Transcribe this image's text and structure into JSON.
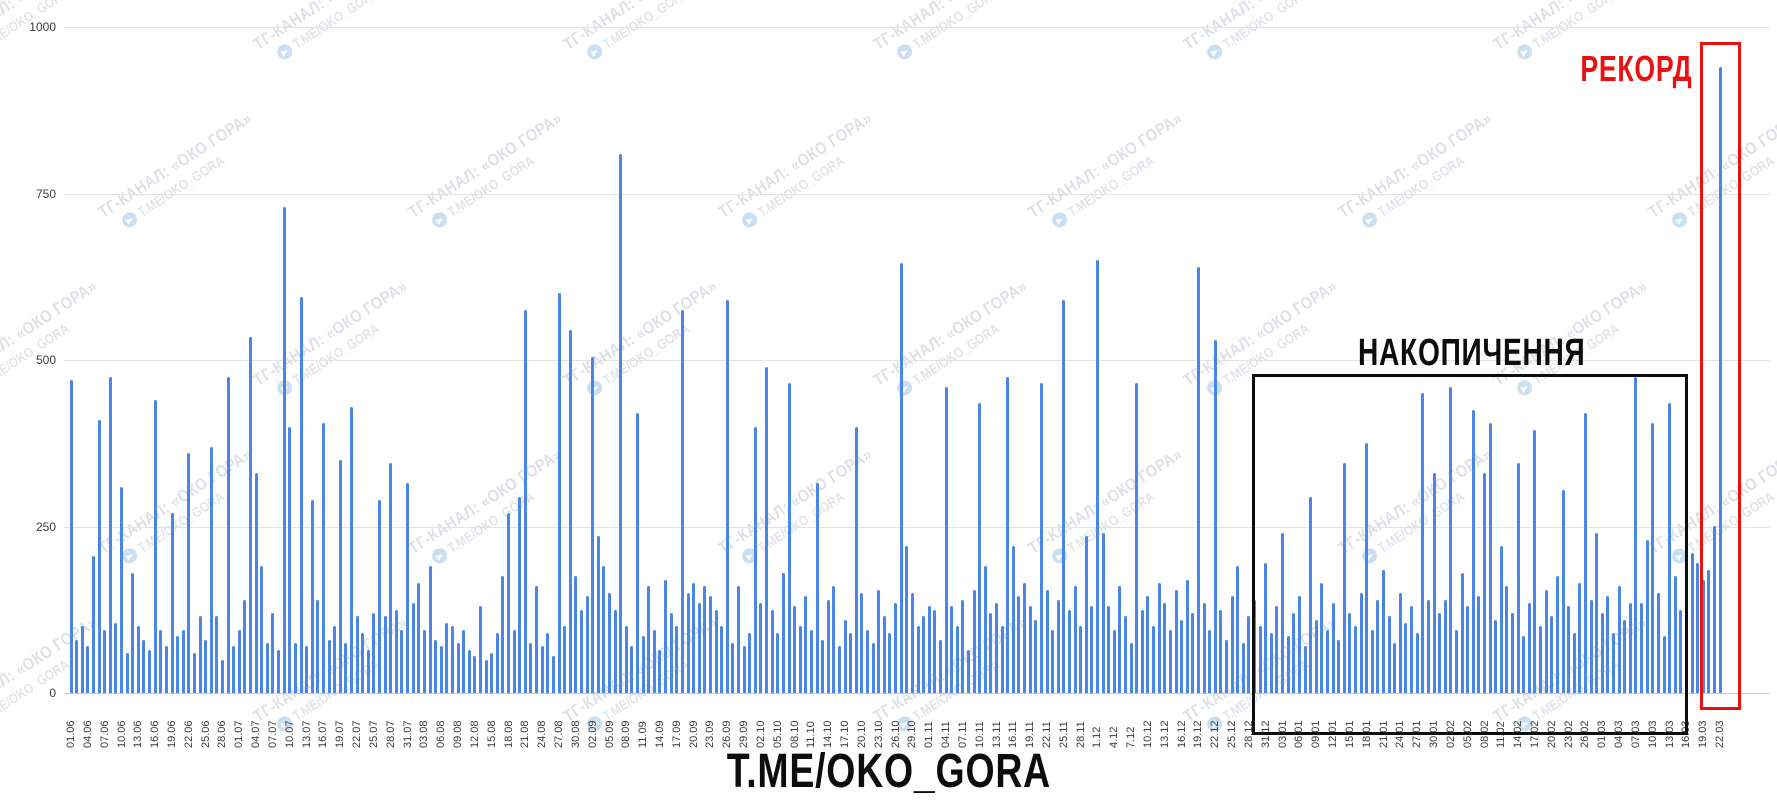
{
  "colors": {
    "bar_blue": "#4a86e8",
    "record_red": "#ea1111",
    "accum_black": "#0d0d0d",
    "gridline": "#e3e3e3",
    "axis_line": "#c9c9c9",
    "tick_text": "#3a3a3a"
  },
  "annotations": {
    "record_label": "РЕКОРД",
    "accumulation_label": "НАКОПИЧЕННЯ"
  },
  "footer": {
    "channel_url": "T.ME/OKO_GORA"
  },
  "watermark": {
    "line1": "ТГ-КАНАЛ: «ОКО ГОРА»",
    "line2": "T.ME/OKO_GORA",
    "icon": "telegram-circle-icon"
  },
  "chart_data": {
    "type": "bar",
    "title": "",
    "xlabel": "",
    "ylabel": "",
    "ylim": [
      0,
      1000
    ],
    "yticks": [
      0,
      250,
      500,
      750,
      1000
    ],
    "grid": true,
    "legend": false,
    "bar_color": "#4a86e8",
    "tick_every_n_days": 3,
    "tick_labels": [
      "01.06",
      "04.06",
      "07.06",
      "10.06",
      "13.06",
      "16.06",
      "19.06",
      "22.06",
      "25.06",
      "28.06",
      "01.07",
      "04.07",
      "07.07",
      "10.07",
      "13.07",
      "16.07",
      "19.07",
      "22.07",
      "25.07",
      "28.07",
      "31.07",
      "03.08",
      "06.08",
      "09.08",
      "12.08",
      "15.08",
      "18.08",
      "21.08",
      "24.08",
      "27.08",
      "30.08",
      "02.09",
      "05.09",
      "08.09",
      "11.09",
      "14.09",
      "17.09",
      "20.09",
      "23.09",
      "26.09",
      "29.09",
      "02.10",
      "05.10",
      "08.10",
      "11.10",
      "14.10",
      "17.10",
      "20.10",
      "23.10",
      "26.10",
      "29.10",
      "01.11",
      "04.11",
      "07.11",
      "10.11",
      "13.11",
      "16.11",
      "19.11",
      "22.11",
      "25.11",
      "28.11",
      "1.12",
      "4.12",
      "7.12",
      "10.12",
      "13.12",
      "16.12",
      "19.12",
      "22.12",
      "25.12",
      "28.12",
      "31.12",
      "03.01",
      "06.01",
      "09.01",
      "12.01",
      "15.01",
      "18.01",
      "21.01",
      "24.01",
      "27.01",
      "30.01",
      "02.02",
      "05.02",
      "08.02",
      "11.02",
      "14.02",
      "17.02",
      "20.02",
      "23.02",
      "26.02",
      "01.03",
      "04.03",
      "07.03",
      "10.03",
      "13.03",
      "16.03",
      "19.03",
      "22.03"
    ],
    "values": [
      470,
      80,
      100,
      70,
      205,
      410,
      95,
      475,
      105,
      310,
      60,
      180,
      100,
      80,
      65,
      440,
      95,
      70,
      270,
      85,
      95,
      360,
      60,
      115,
      80,
      370,
      115,
      50,
      475,
      70,
      95,
      140,
      535,
      330,
      190,
      75,
      120,
      65,
      730,
      400,
      75,
      595,
      70,
      290,
      140,
      405,
      80,
      100,
      350,
      75,
      430,
      115,
      90,
      65,
      120,
      290,
      115,
      345,
      125,
      95,
      315,
      135,
      165,
      95,
      190,
      80,
      70,
      105,
      100,
      75,
      95,
      65,
      55,
      130,
      50,
      60,
      90,
      175,
      270,
      95,
      295,
      575,
      75,
      160,
      70,
      90,
      55,
      600,
      100,
      545,
      175,
      125,
      145,
      505,
      235,
      190,
      150,
      125,
      810,
      100,
      70,
      420,
      85,
      160,
      95,
      65,
      170,
      120,
      100,
      575,
      150,
      165,
      135,
      160,
      145,
      125,
      100,
      590,
      75,
      160,
      70,
      90,
      400,
      135,
      490,
      125,
      90,
      180,
      465,
      130,
      100,
      145,
      95,
      315,
      80,
      140,
      160,
      70,
      110,
      90,
      400,
      150,
      95,
      75,
      155,
      115,
      90,
      135,
      645,
      220,
      150,
      100,
      115,
      130,
      125,
      80,
      460,
      130,
      100,
      140,
      65,
      155,
      435,
      190,
      120,
      135,
      100,
      475,
      220,
      145,
      165,
      130,
      110,
      465,
      155,
      95,
      140,
      590,
      125,
      160,
      100,
      235,
      130,
      650,
      240,
      130,
      95,
      160,
      115,
      75,
      465,
      125,
      145,
      100,
      165,
      135,
      95,
      155,
      110,
      170,
      120,
      640,
      135,
      95,
      530,
      125,
      80,
      145,
      190,
      75,
      115,
      140,
      100,
      195,
      90,
      130,
      240,
      85,
      120,
      145,
      70,
      295,
      110,
      165,
      95,
      135,
      80,
      345,
      120,
      100,
      150,
      375,
      95,
      140,
      185,
      115,
      75,
      150,
      105,
      130,
      90,
      450,
      140,
      330,
      120,
      140,
      460,
      95,
      180,
      130,
      425,
      145,
      330,
      405,
      110,
      220,
      160,
      120,
      345,
      85,
      135,
      395,
      100,
      155,
      115,
      175,
      305,
      130,
      90,
      165,
      420,
      140,
      240,
      120,
      145,
      90,
      160,
      110,
      135,
      475,
      135,
      230,
      405,
      150,
      85,
      435,
      175,
      125,
      240,
      210,
      195,
      170,
      185,
      250,
      940
    ],
    "annotated_regions": [
      {
        "label": "НАКОПИЧЕННЯ",
        "style": "black-rectangle",
        "date_range": [
          "28.12",
          "18.03"
        ]
      },
      {
        "label": "РЕКОРД",
        "style": "red-rectangle",
        "date_range": [
          "20.03",
          "22.03"
        ],
        "record_value": 940
      }
    ]
  }
}
